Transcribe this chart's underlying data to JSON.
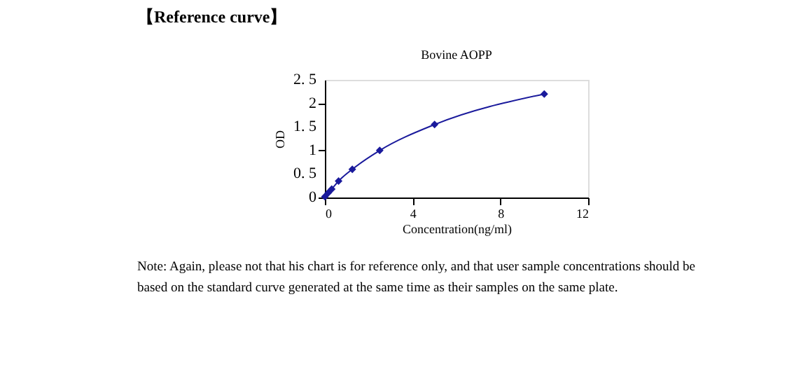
{
  "chart_data": {
    "type": "line",
    "title": "Bovine AOPP",
    "xlabel": "Concentration(ng/ml)",
    "ylabel": "OD",
    "x": [
      0,
      0.156,
      0.312,
      0.625,
      1.25,
      2.5,
      5,
      10
    ],
    "series": [
      {
        "color": "#1a1a9c",
        "values": [
          0.02,
          0.1,
          0.18,
          0.35,
          0.6,
          1.0,
          1.55,
          2.2
        ]
      }
    ],
    "xlim": [
      0,
      12
    ],
    "xticks": [
      0,
      4,
      8,
      12
    ],
    "ylim": [
      0,
      2.5
    ],
    "yticks": [
      0,
      {
        "value": 0.5,
        "label": "0. 5"
      },
      1,
      {
        "value": 1.5,
        "label": "1. 5"
      },
      2,
      {
        "value": 2.5,
        "label": "2. 5"
      }
    ],
    "grid": false,
    "marker": "diamond",
    "line_style": "solid",
    "annotations": [
      "【Reference curve】",
      "Note: Again, please not that his chart is for reference only, and that user sample concentrations should be based on the standard curve generated at the same time as their samples on the same plate."
    ]
  }
}
